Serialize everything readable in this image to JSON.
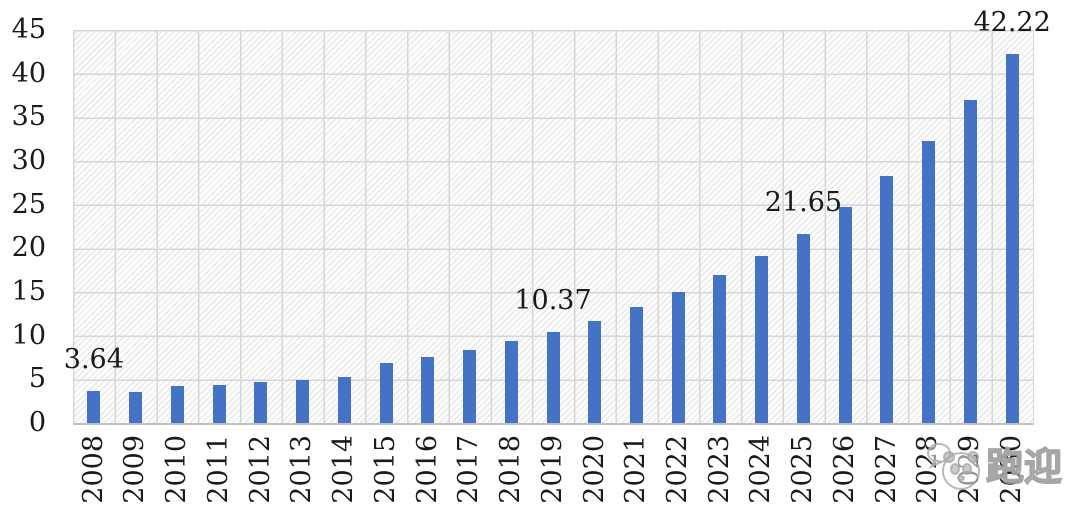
{
  "chart_data": {
    "type": "bar",
    "title": "",
    "xlabel": "",
    "ylabel": "",
    "categories": [
      "2008",
      "2009",
      "2010",
      "2011",
      "2012",
      "2013",
      "2014",
      "2015",
      "2016",
      "2017",
      "2018",
      "2019",
      "2020",
      "2021",
      "2022",
      "2023",
      "2024",
      "2025",
      "2026",
      "2027",
      "2028",
      "2029",
      "2030"
    ],
    "values": [
      3.64,
      3.5,
      4.2,
      4.4,
      4.65,
      4.9,
      5.3,
      6.9,
      7.6,
      8.4,
      9.4,
      10.37,
      11.72,
      13.24,
      14.96,
      16.91,
      19.11,
      21.65,
      24.75,
      28.29,
      32.33,
      36.95,
      42.22
    ],
    "data_labels": {
      "2008": "3.64",
      "2019": "10.37",
      "2025": "21.65",
      "2030": "42.22"
    },
    "ylim": [
      0,
      45
    ],
    "yticks": [
      0,
      5,
      10,
      15,
      20,
      25,
      30,
      35,
      40,
      45
    ],
    "grid": "both",
    "legend_position": "none",
    "plot_background": "diagonal-hatch",
    "x_label_rotation": -90,
    "colors": {
      "bar": "#4472C4",
      "gridline": "#d6d6d6",
      "hatch_line": "#e8e8e8",
      "axis_line": "#c0c0c0",
      "label_text": "#1a1a1a",
      "watermark": "#a3a3a3"
    }
  },
  "watermark": {
    "text": "跑迎",
    "icon": "panda-chat-bubble-icon"
  }
}
